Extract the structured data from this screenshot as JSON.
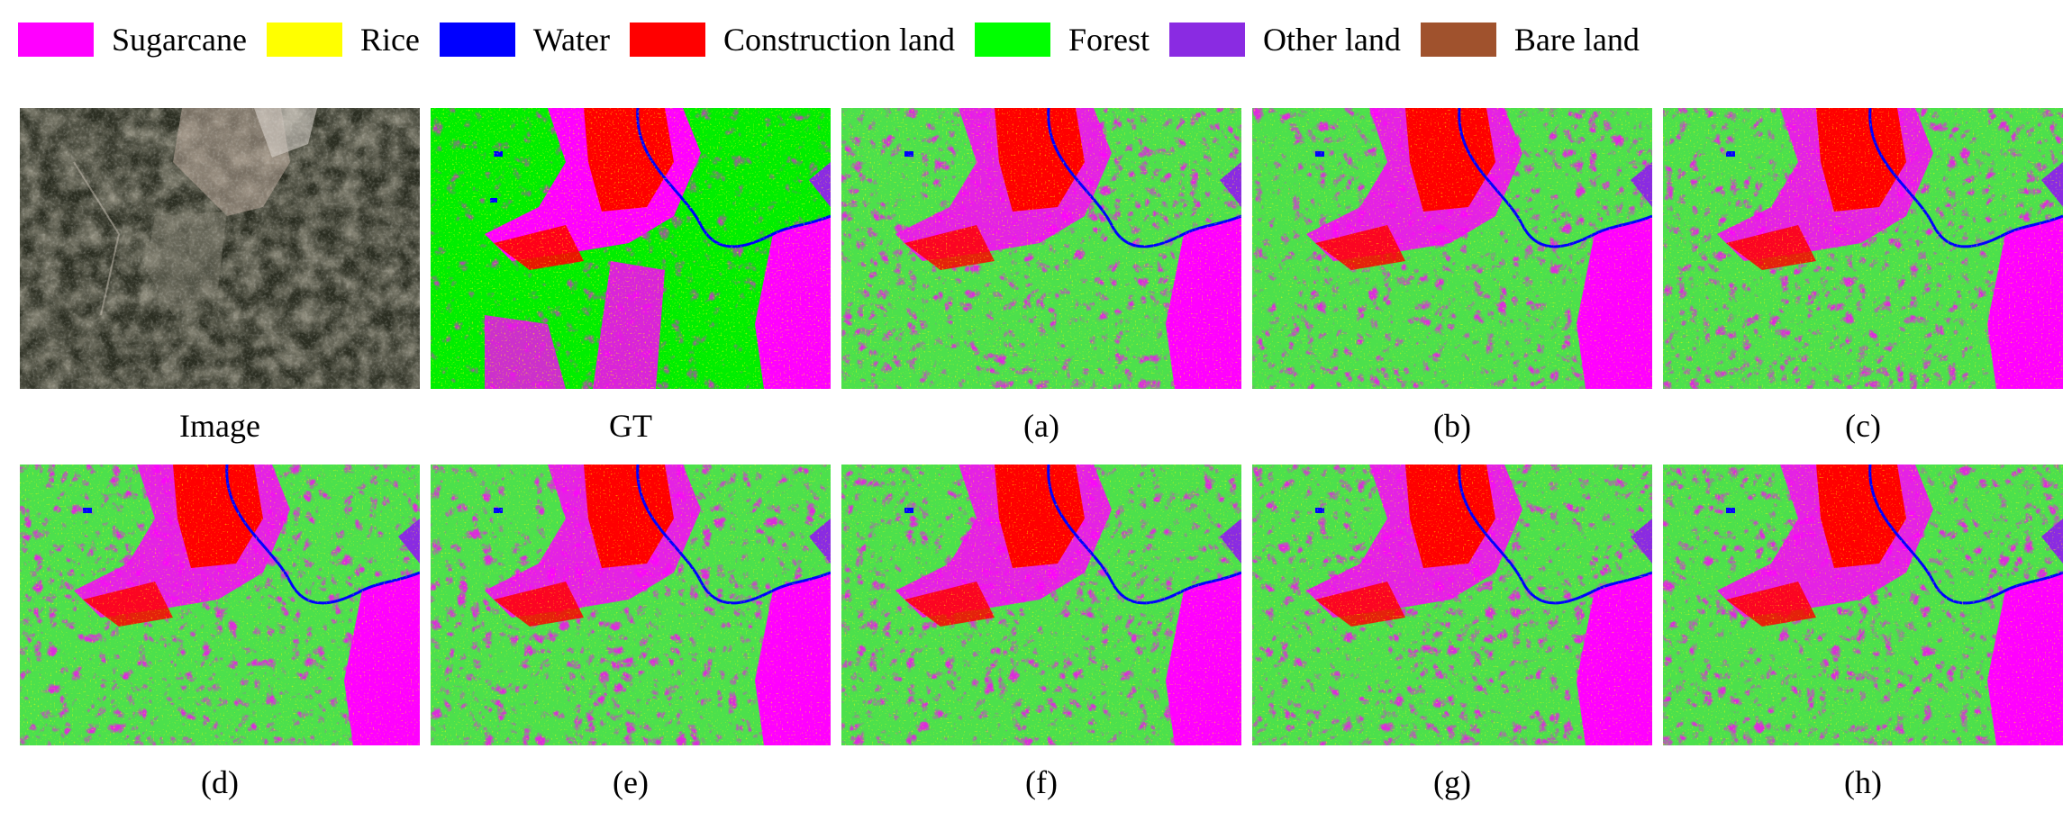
{
  "legend": [
    {
      "label": "Sugarcane",
      "color": "#ff00ff"
    },
    {
      "label": "Rice",
      "color": "#ffff00"
    },
    {
      "label": "Water",
      "color": "#0000ff"
    },
    {
      "label": "Construction land",
      "color": "#ff0000"
    },
    {
      "label": "Forest",
      "color": "#00ff00"
    },
    {
      "label": "Other land",
      "color": "#8a2be2"
    },
    {
      "label": "Bare land",
      "color": "#a0522d"
    }
  ],
  "panels": [
    {
      "caption": "Image",
      "kind": "satellite-image"
    },
    {
      "caption": "GT",
      "kind": "ground-truth-map"
    },
    {
      "caption": "(a)",
      "kind": "classification-map"
    },
    {
      "caption": "(b)",
      "kind": "classification-map"
    },
    {
      "caption": "(c)",
      "kind": "classification-map"
    },
    {
      "caption": "(d)",
      "kind": "classification-map"
    },
    {
      "caption": "(e)",
      "kind": "classification-map"
    },
    {
      "caption": "(f)",
      "kind": "classification-map"
    },
    {
      "caption": "(g)",
      "kind": "classification-map"
    },
    {
      "caption": "(h)",
      "kind": "classification-map"
    }
  ]
}
